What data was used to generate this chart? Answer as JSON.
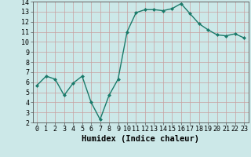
{
  "x": [
    0,
    1,
    2,
    3,
    4,
    5,
    6,
    7,
    8,
    9,
    10,
    11,
    12,
    13,
    14,
    15,
    16,
    17,
    18,
    19,
    20,
    21,
    22,
    23
  ],
  "y": [
    5.7,
    6.6,
    6.3,
    4.7,
    5.9,
    6.6,
    4.0,
    2.3,
    4.7,
    6.3,
    11.0,
    12.9,
    13.2,
    13.2,
    13.1,
    13.3,
    13.8,
    12.8,
    11.8,
    11.2,
    10.7,
    10.6,
    10.8,
    10.4
  ],
  "line_color": "#1a7a6a",
  "marker": "D",
  "marker_size": 2.0,
  "bg_color": "#cce8e8",
  "grid_color_major": "#c8a0a0",
  "grid_color_minor": "#d4c0c0",
  "xlabel": "Humidex (Indice chaleur)",
  "xlim": [
    -0.5,
    23.5
  ],
  "ylim": [
    2,
    14
  ],
  "xticks": [
    0,
    1,
    2,
    3,
    4,
    5,
    6,
    7,
    8,
    9,
    10,
    11,
    12,
    13,
    14,
    15,
    16,
    17,
    18,
    19,
    20,
    21,
    22,
    23
  ],
  "yticks": [
    2,
    3,
    4,
    5,
    6,
    7,
    8,
    9,
    10,
    11,
    12,
    13,
    14
  ],
  "xlabel_fontsize": 7.5,
  "tick_fontsize": 6.0,
  "linewidth": 1.0
}
